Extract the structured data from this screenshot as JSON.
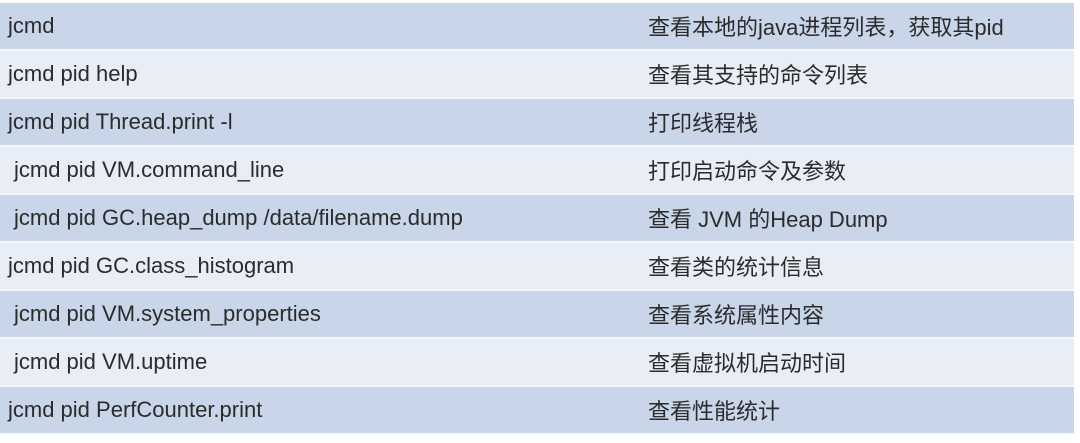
{
  "rows": [
    {
      "command": "jcmd",
      "description": "查看本地的java进程列表，获取其pid"
    },
    {
      "command": "jcmd pid help",
      "description": "查看其支持的命令列表"
    },
    {
      "command": "jcmd pid Thread.print -l",
      "description": "打印线程栈"
    },
    {
      "command": "jcmd pid VM.command_line",
      "description": "打印启动命令及参数"
    },
    {
      "command": "jcmd pid GC.heap_dump /data/filename.dump",
      "description": "查看 JVM 的Heap Dump"
    },
    {
      "command": "jcmd pid GC.class_histogram",
      "description": "查看类的统计信息"
    },
    {
      "command": "jcmd pid VM.system_properties",
      "description": "查看系统属性内容"
    },
    {
      "command": "jcmd pid VM.uptime",
      "description": "查看虚拟机启动时间"
    },
    {
      "command": "jcmd pid PerfCounter.print",
      "description": "查看性能统计"
    }
  ],
  "colors": {
    "row_dark": "#c9d5e8",
    "row_light": "#e8edf6",
    "text": "#2b2b2b"
  }
}
